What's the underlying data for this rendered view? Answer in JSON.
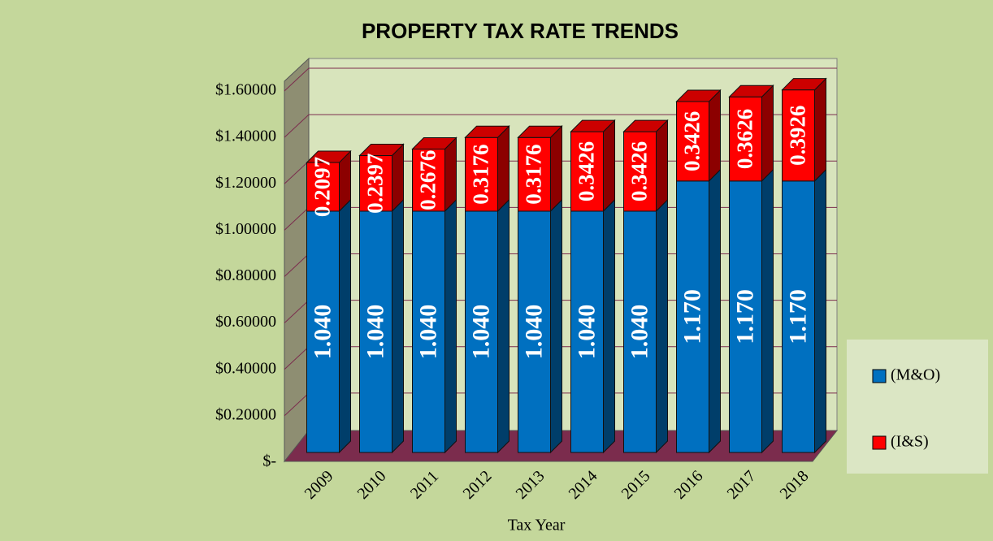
{
  "chart_data": {
    "type": "bar",
    "stacked": true,
    "title": "PROPERTY TAX RATE TRENDS",
    "x_label": "Tax Year",
    "categories": [
      "2009",
      "2010",
      "2011",
      "2012",
      "2013",
      "2014",
      "2015",
      "2016",
      "2017",
      "2018"
    ],
    "series": [
      {
        "name": "(M&O)",
        "color": "#0070c0",
        "values": [
          1.04,
          1.04,
          1.04,
          1.04,
          1.04,
          1.04,
          1.04,
          1.17,
          1.17,
          1.17
        ],
        "value_labels": [
          "1.040",
          "1.040",
          "1.040",
          "1.040",
          "1.040",
          "1.040",
          "1.040",
          "1.170",
          "1.170",
          "1.170"
        ]
      },
      {
        "name": "(I&S)",
        "color": "#ff0000",
        "values": [
          0.2097,
          0.2397,
          0.2676,
          0.3176,
          0.3176,
          0.3426,
          0.3426,
          0.3426,
          0.3626,
          0.3926
        ]
      }
    ],
    "ylim": [
      0,
      1.6
    ],
    "yticks": [
      {
        "value": 0,
        "label": "$-"
      },
      {
        "value": 0.2,
        "label": "$0.20000"
      },
      {
        "value": 0.4,
        "label": "$0.40000"
      },
      {
        "value": 0.6,
        "label": "$0.60000"
      },
      {
        "value": 0.8,
        "label": "$0.80000"
      },
      {
        "value": 1.0,
        "label": "$1.00000"
      },
      {
        "value": 1.2,
        "label": "$1.20000"
      },
      {
        "value": 1.4,
        "label": "$1.40000"
      },
      {
        "value": 1.6,
        "label": "$1.60000"
      }
    ],
    "grid": true
  }
}
